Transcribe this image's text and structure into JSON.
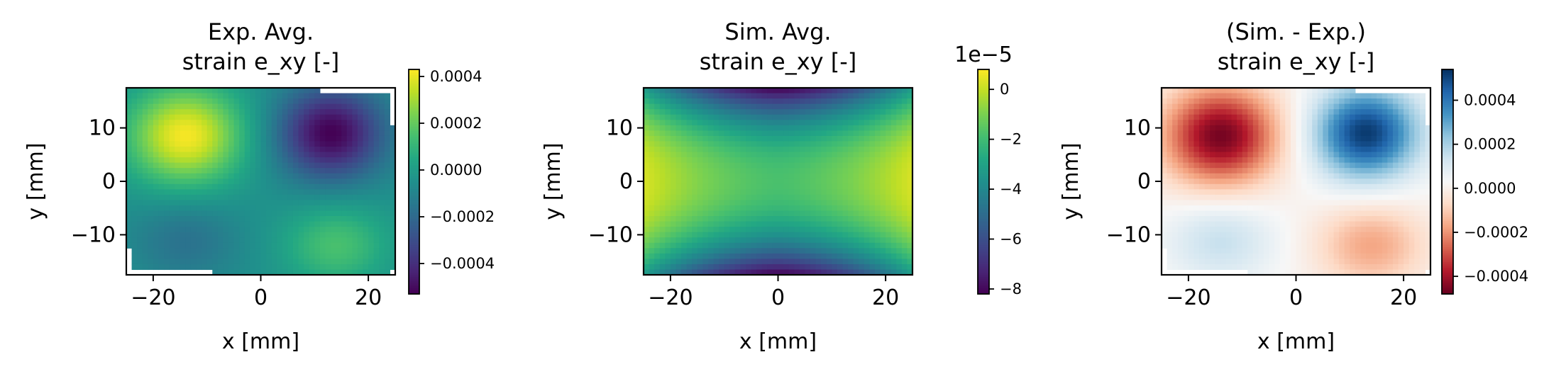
{
  "chart_data": [
    {
      "type": "heatmap",
      "title": [
        "Exp. Avg.",
        "strain e_xy [-]"
      ],
      "xlabel": "x [mm]",
      "ylabel": "y [mm]",
      "xlim": [
        -25,
        25
      ],
      "ylim": [
        -17.5,
        17.5
      ],
      "xticks": [
        -20,
        0,
        20
      ],
      "xtick_labels": [
        "−20",
        "0",
        "20"
      ],
      "yticks": [
        -10,
        0,
        10
      ],
      "ytick_labels": [
        "−10",
        "0",
        "10"
      ],
      "colormap": "viridis",
      "colorbar": {
        "vmin": -0.00053,
        "vmax": 0.00043,
        "ticks": [
          0.0004,
          0.0002,
          0.0,
          -0.0002,
          -0.0004
        ],
        "tick_labels": [
          "0.0004",
          "0.0002",
          "0.0000",
          "−0.0002",
          "−0.0004"
        ],
        "offset_text": ""
      },
      "field": {
        "description_values": "strain e_xy field, Gaussian lobes",
        "base": -5e-05,
        "lobes": [
          {
            "x": -14,
            "y": 8.5,
            "amp": 0.00047,
            "sx": 7.5,
            "sy": 6.5
          },
          {
            "x": 13,
            "y": 9,
            "amp": -0.00048,
            "sx": 6.8,
            "sy": 6.0
          },
          {
            "x": -14,
            "y": -11,
            "amp": -0.00012,
            "sx": 7,
            "sy": 5.5
          },
          {
            "x": 14,
            "y": -12,
            "amp": 0.0002,
            "sx": 7,
            "sy": 5.5
          }
        ],
        "masked_edges": true
      }
    },
    {
      "type": "heatmap",
      "title": [
        "Sim. Avg.",
        "strain e_xy [-]"
      ],
      "xlabel": "x [mm]",
      "ylabel": "y [mm]",
      "xlim": [
        -25,
        25
      ],
      "ylim": [
        -17.5,
        17.5
      ],
      "xticks": [
        -20,
        0,
        20
      ],
      "xtick_labels": [
        "−20",
        "0",
        "20"
      ],
      "yticks": [
        -10,
        0,
        10
      ],
      "ytick_labels": [
        "−10",
        "0",
        "10"
      ],
      "colormap": "viridis",
      "colorbar": {
        "vmin": -8.2,
        "vmax": 0.8,
        "ticks": [
          0,
          -2,
          -4,
          -6,
          -8
        ],
        "tick_labels": [
          "0",
          "−2",
          "−4",
          "−6",
          "−8"
        ],
        "offset_text": "1e−5"
      },
      "field": {
        "model": "saddle",
        "center_value": -1.8,
        "edge_x_value": 0.3,
        "edge_y_value": -8.2
      }
    },
    {
      "type": "heatmap",
      "title": [
        "(Sim. - Exp.)",
        "strain e_xy [-]"
      ],
      "xlabel": "x [mm]",
      "ylabel": "y [mm]",
      "xlim": [
        -25,
        25
      ],
      "ylim": [
        -17.5,
        17.5
      ],
      "xticks": [
        -20,
        0,
        20
      ],
      "xtick_labels": [
        "−20",
        "0",
        "20"
      ],
      "yticks": [
        -10,
        0,
        10
      ],
      "ytick_labels": [
        "−10",
        "0",
        "10"
      ],
      "colormap": "RdBu",
      "colorbar": {
        "vmin": -0.00048,
        "vmax": 0.00054,
        "ticks": [
          0.0004,
          0.0002,
          0.0,
          -0.0002,
          -0.0004
        ],
        "tick_labels": [
          "0.0004",
          "0.0002",
          "0.0000",
          "−0.0002",
          "−0.0004"
        ],
        "offset_text": ""
      },
      "field": {
        "base": 2e-05,
        "lobes": [
          {
            "x": -14,
            "y": 8.5,
            "amp": -0.00048,
            "sx": 7.5,
            "sy": 6.5
          },
          {
            "x": 13,
            "y": 9,
            "amp": 0.0005,
            "sx": 6.8,
            "sy": 6.0
          },
          {
            "x": -14,
            "y": -11,
            "amp": 0.00013,
            "sx": 7,
            "sy": 5.5
          },
          {
            "x": 14,
            "y": -12,
            "amp": -0.00019,
            "sx": 7,
            "sy": 5.5
          }
        ],
        "masked_edges": true
      }
    }
  ]
}
